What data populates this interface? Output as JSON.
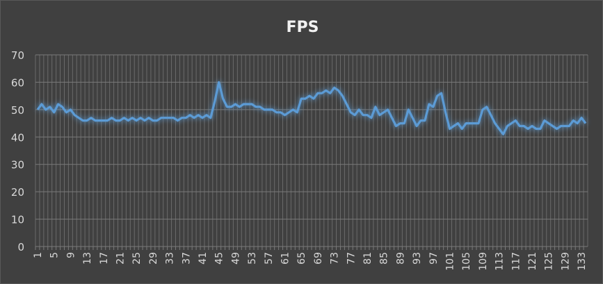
{
  "chart_data": {
    "type": "line",
    "title": "FPS",
    "xlabel": "",
    "ylabel": "",
    "ylim": [
      0,
      70
    ],
    "yticks": [
      0,
      10,
      20,
      30,
      40,
      50,
      60,
      70
    ],
    "x_tick_step": 4,
    "grid": true,
    "legend": "none",
    "line_color": "#5B9BD5",
    "background_color": "#404040",
    "x": [
      1,
      2,
      3,
      4,
      5,
      6,
      7,
      8,
      9,
      10,
      11,
      12,
      13,
      14,
      15,
      16,
      17,
      18,
      19,
      20,
      21,
      22,
      23,
      24,
      25,
      26,
      27,
      28,
      29,
      30,
      31,
      32,
      33,
      34,
      35,
      36,
      37,
      38,
      39,
      40,
      41,
      42,
      43,
      44,
      45,
      46,
      47,
      48,
      49,
      50,
      51,
      52,
      53,
      54,
      55,
      56,
      57,
      58,
      59,
      60,
      61,
      62,
      63,
      64,
      65,
      66,
      67,
      68,
      69,
      70,
      71,
      72,
      73,
      74,
      75,
      76,
      77,
      78,
      79,
      80,
      81,
      82,
      83,
      84,
      85,
      86,
      87,
      88,
      89,
      90,
      91,
      92,
      93,
      94,
      95,
      96,
      97,
      98,
      99,
      100,
      101,
      102,
      103,
      104,
      105,
      106,
      107,
      108,
      109,
      110,
      111,
      112,
      113,
      114,
      115,
      116,
      117,
      118,
      119,
      120,
      121,
      122,
      123,
      124,
      125,
      126,
      127,
      128,
      129,
      130,
      131,
      132,
      133,
      134
    ],
    "values": [
      50,
      52,
      50,
      51,
      49,
      52,
      51,
      49,
      50,
      48,
      47,
      46,
      46,
      47,
      46,
      46,
      46,
      46,
      47,
      46,
      46,
      47,
      46,
      47,
      46,
      47,
      46,
      47,
      46,
      46,
      47,
      47,
      47,
      47,
      46,
      47,
      47,
      48,
      47,
      48,
      47,
      48,
      47,
      53,
      60,
      54,
      51,
      51,
      52,
      51,
      52,
      52,
      52,
      51,
      51,
      50,
      50,
      50,
      49,
      49,
      48,
      49,
      50,
      49,
      54,
      54,
      55,
      54,
      56,
      56,
      57,
      56,
      58,
      57,
      55,
      52,
      49,
      48,
      50,
      48,
      48,
      47,
      51,
      48,
      49,
      50,
      47,
      44,
      45,
      45,
      50,
      47,
      44,
      46,
      46,
      52,
      51,
      55,
      56,
      49,
      43,
      44,
      45,
      43,
      45,
      45,
      45,
      45,
      50,
      51,
      48,
      45,
      43,
      41,
      44,
      45,
      46,
      44,
      44,
      43,
      44,
      43,
      43,
      46,
      45,
      44,
      43,
      44,
      44,
      44,
      46,
      45,
      47,
      45
    ]
  }
}
